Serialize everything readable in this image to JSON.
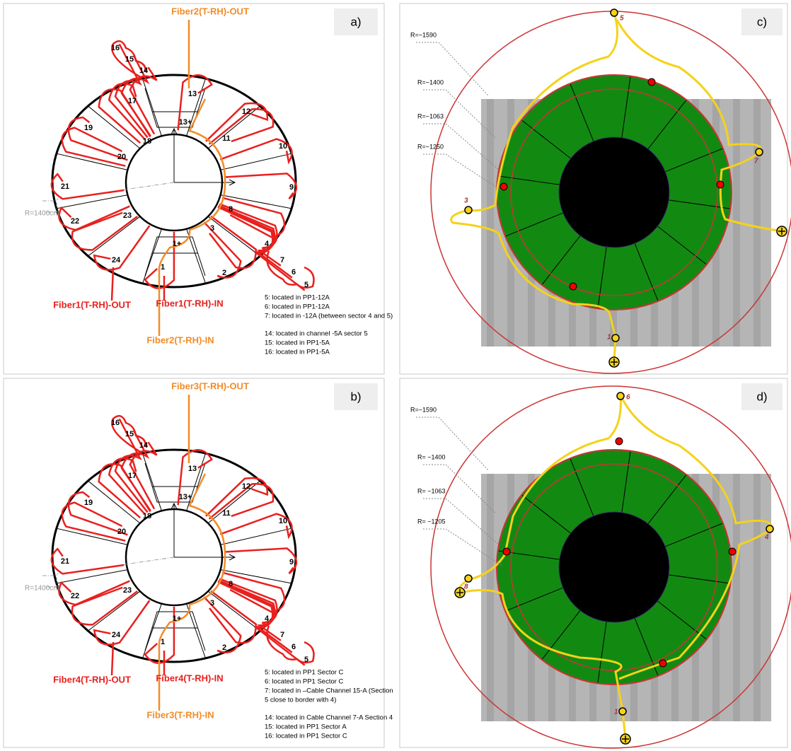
{
  "panels": [
    {
      "tag": "a)",
      "sectors": [
        "1",
        "2",
        "3",
        "4",
        "5",
        "6",
        "7",
        "8",
        "9",
        "10",
        "11",
        "12",
        "13",
        "14",
        "15",
        "16",
        "17",
        "18",
        "19",
        "20",
        "21",
        "22",
        "23",
        "24"
      ],
      "marks": [
        "13+",
        "1+"
      ],
      "radius_label": "R=1400cm",
      "fibers": [
        "Fiber2(T-RH)-OUT",
        "Fiber1(T-RH)-OUT",
        "Fiber1(T-RH)-IN",
        "Fiber2(T-RH)-IN"
      ],
      "notes": [
        [
          "5: located in PP1-12A",
          "6: located in PP1-12A",
          "7: located in -12A (between  sector 4 and 5)"
        ],
        [
          "14: located in channel -5A sector 5",
          "15: located in PP1-5A",
          "16: located in PP1-5A"
        ]
      ]
    },
    {
      "tag": "b)",
      "sectors": [
        "1",
        "2",
        "3",
        "4",
        "5",
        "6",
        "7",
        "8",
        "9",
        "10",
        "11",
        "12",
        "13",
        "14",
        "15",
        "16",
        "17",
        "18",
        "19",
        "20",
        "21",
        "22",
        "23",
        "24"
      ],
      "marks": [
        "13+",
        "1+"
      ],
      "radius_label": "R=1400cm",
      "fibers": [
        "Fiber3(T-RH)-OUT",
        "Fiber4(T-RH)-OUT",
        "Fiber4(T-RH)-IN",
        "Fiber3(T-RH)-IN"
      ],
      "notes": [
        [
          "5: located in PP1 Sector C",
          "6: located in PP1 Sector C",
          "7: located in –Cable Channel 15-A (Section",
          "5 close to border with 4)"
        ],
        [
          "14: located in Cable Channel 7-A Section 4",
          "15: located in PP1 Sector A",
          "16: located in PP1 Sector C"
        ]
      ]
    },
    {
      "tag": "c)",
      "radius_labels": [
        "R=~1590",
        "R=~1400",
        "R=~1063",
        "R=~1250"
      ],
      "points": [
        "5",
        "7",
        "3",
        "1"
      ]
    },
    {
      "tag": "d)",
      "radius_labels": [
        "R=~1590",
        "R= ~1400",
        "R= ~1063",
        "R= ~1205"
      ],
      "points": [
        "6",
        "4",
        "8",
        "1"
      ]
    }
  ]
}
